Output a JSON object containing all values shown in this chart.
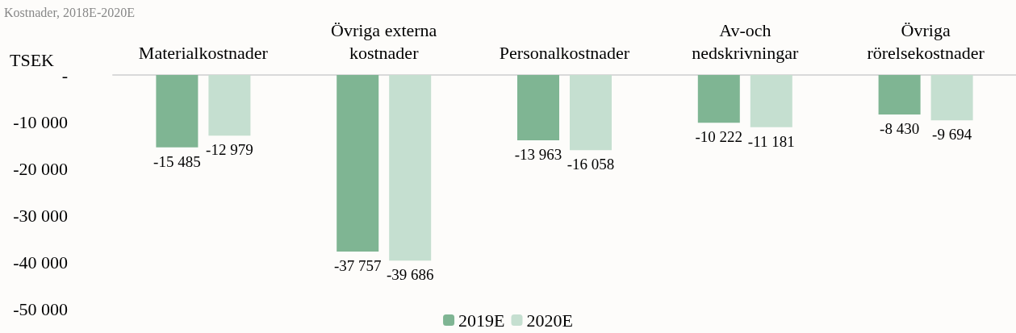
{
  "chart_data": {
    "type": "bar",
    "title": "Kostnader, 2018E-2020E",
    "ylabel": "TSEK",
    "categories": [
      "Materialkostnader",
      "Övriga externa\nkostnader",
      "Personalkostnader",
      "Av-och\nnedskrivningar",
      "Övriga\nrörelsekostnader"
    ],
    "series": [
      {
        "name": "2019E",
        "color": "#7fb593",
        "values": [
          -15485,
          -37757,
          -13963,
          -10222,
          -8430
        ],
        "value_labels": [
          "-15 485",
          "-37 757",
          "-13 963",
          "-10 222",
          "-8 430"
        ]
      },
      {
        "name": "2020E",
        "color": "#c5dfd0",
        "values": [
          -12979,
          -39686,
          -16058,
          -11181,
          -9694
        ],
        "value_labels": [
          "-12 979",
          "-39 686",
          "-16 058",
          "-11 181",
          "-9 694"
        ]
      }
    ],
    "ylim": [
      -50000,
      0
    ],
    "yticks": [
      {
        "value": -50000,
        "label": "-50 000"
      },
      {
        "value": -40000,
        "label": "-40 000"
      },
      {
        "value": -30000,
        "label": "-30 000"
      },
      {
        "value": -20000,
        "label": "-20 000"
      },
      {
        "value": -10000,
        "label": "-10 000"
      },
      {
        "value": 0,
        "label": "-"
      }
    ],
    "grid": false,
    "legend": "bottom"
  }
}
